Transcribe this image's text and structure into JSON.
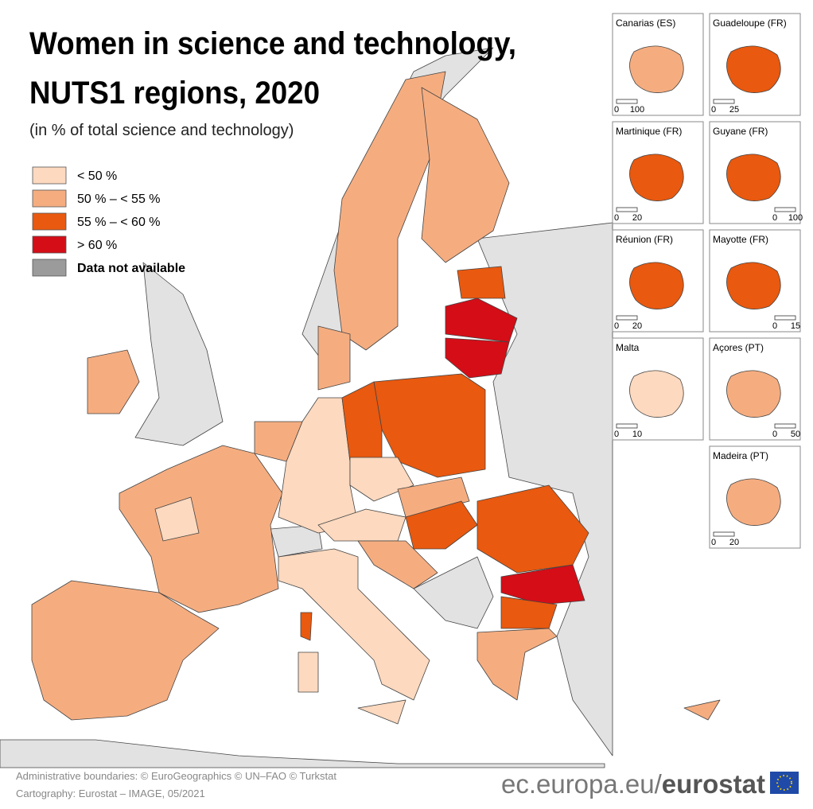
{
  "title_lines": [
    "Women in science and technology,",
    "NUTS1 regions, 2020"
  ],
  "subtitle": "(in % of total science and technology)",
  "legend": [
    {
      "label": "< 50 %",
      "color": "#fcd9bf"
    },
    {
      "label": "50 % – < 55 %",
      "color": "#f5ad80"
    },
    {
      "label": "55 % – < 60 %",
      "color": "#e9590f"
    },
    {
      "label": "> 60 %",
      "color": "#d40d17"
    },
    {
      "label": "Data not available",
      "color": "#9b9b9b"
    }
  ],
  "insets": [
    {
      "name": "Canarias (ES)",
      "scale": [
        0,
        100
      ]
    },
    {
      "name": "Guadeloupe (FR)",
      "scale": [
        0,
        25
      ]
    },
    {
      "name": "Martinique (FR)",
      "scale": [
        0,
        20
      ]
    },
    {
      "name": "Guyane (FR)",
      "scale": [
        0,
        100
      ]
    },
    {
      "name": "Réunion (FR)",
      "scale": [
        0,
        20
      ]
    },
    {
      "name": "Mayotte (FR)",
      "scale": [
        0,
        15
      ]
    },
    {
      "name": "Malta",
      "scale": [
        0,
        10
      ]
    },
    {
      "name": "Açores (PT)",
      "scale": [
        0,
        50
      ]
    },
    {
      "name": "Madeira (PT)",
      "scale": [
        0,
        20
      ]
    }
  ],
  "footer": {
    "credits": [
      "Administrative boundaries: © EuroGeographics © UN–FAO © Turkstat",
      "Cartography: Eurostat – IMAGE, 05/2021"
    ],
    "url": "ec.europa.eu/",
    "brand": "eurostat"
  }
}
